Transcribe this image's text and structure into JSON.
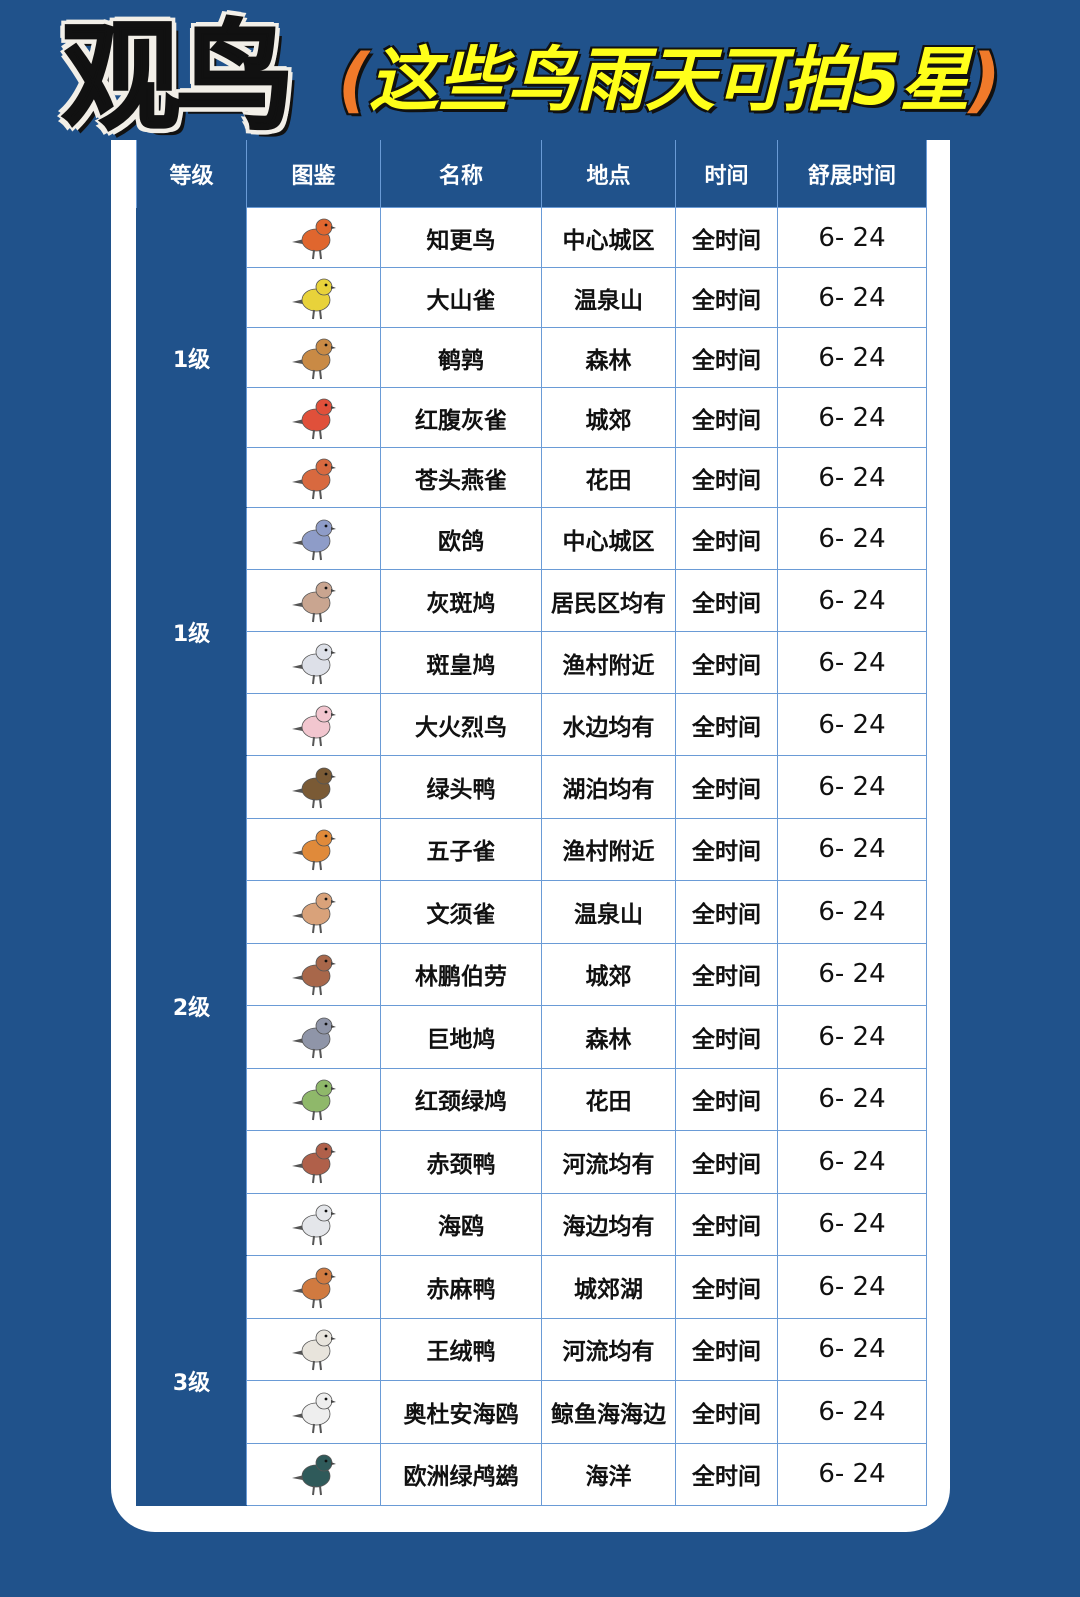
{
  "title": "观鸟",
  "subtitle": {
    "open": "(",
    "text": "这些鸟雨天可拍5星",
    "close": ")"
  },
  "colors": {
    "background": "#20528b",
    "title_yellow": "#ffff1a",
    "paren_orange": "#f07a2a",
    "grid": "#6a9bd6"
  },
  "table": {
    "headers": [
      "等级",
      "图鉴",
      "名称",
      "地点",
      "时间",
      "舒展时间"
    ],
    "groups": [
      {
        "level": "1级",
        "rows": [
          {
            "name": "知更鸟",
            "location": "中心城区",
            "time": "全时间",
            "stretch": "6- 24",
            "icon": "robin-icon",
            "color": "#e0662e"
          },
          {
            "name": "大山雀",
            "location": "温泉山",
            "time": "全时间",
            "stretch": "6- 24",
            "icon": "great-tit-icon",
            "color": "#e8d23a"
          },
          {
            "name": "鹌鹑",
            "location": "森林",
            "time": "全时间",
            "stretch": "6- 24",
            "icon": "quail-icon",
            "color": "#c98a45"
          },
          {
            "name": "红腹灰雀",
            "location": "城郊",
            "time": "全时间",
            "stretch": "6- 24",
            "icon": "bullfinch-icon",
            "color": "#e0503a"
          },
          {
            "name": "苍头燕雀",
            "location": "花田",
            "time": "全时间",
            "stretch": "6- 24",
            "icon": "chaffinch-icon",
            "color": "#d8693f"
          }
        ]
      },
      {
        "level": "1级",
        "rows": [
          {
            "name": "欧鸽",
            "location": "中心城区",
            "time": "全时间",
            "stretch": "6- 24",
            "icon": "stock-dove-icon",
            "color": "#8e9cc8"
          },
          {
            "name": "灰斑鸠",
            "location": "居民区均有",
            "time": "全时间",
            "stretch": "6- 24",
            "icon": "collared-dove-icon",
            "color": "#c9a590"
          },
          {
            "name": "斑皇鸠",
            "location": "渔村附近",
            "time": "全时间",
            "stretch": "6- 24",
            "icon": "wood-pigeon-icon",
            "color": "#dde0e8"
          },
          {
            "name": "大火烈鸟",
            "location": "水边均有",
            "time": "全时间",
            "stretch": "6- 24",
            "icon": "flamingo-icon",
            "color": "#f2c6cf"
          }
        ]
      },
      {
        "level": "2级",
        "rows": [
          {
            "name": "绿头鸭",
            "location": "湖泊均有",
            "time": "全时间",
            "stretch": "6- 24",
            "icon": "mallard-icon",
            "color": "#7a5a35"
          },
          {
            "name": "五子雀",
            "location": "渔村附近",
            "time": "全时间",
            "stretch": "6- 24",
            "icon": "nuthatch-icon",
            "color": "#e08a3a"
          },
          {
            "name": "文须雀",
            "location": "温泉山",
            "time": "全时间",
            "stretch": "6- 24",
            "icon": "bearded-reedling-icon",
            "color": "#d9a27a"
          },
          {
            "name": "林鹏伯劳",
            "location": "城郊",
            "time": "全时间",
            "stretch": "6- 24",
            "icon": "shrike-icon",
            "color": "#a8674a"
          },
          {
            "name": "巨地鸠",
            "location": "森林",
            "time": "全时间",
            "stretch": "6- 24",
            "icon": "ground-dove-icon",
            "color": "#8f95a8"
          },
          {
            "name": "红颈绿鸠",
            "location": "花田",
            "time": "全时间",
            "stretch": "6- 24",
            "icon": "green-pigeon-icon",
            "color": "#8fb86a"
          },
          {
            "name": "赤颈鸭",
            "location": "河流均有",
            "time": "全时间",
            "stretch": "6- 24",
            "icon": "wigeon-icon",
            "color": "#b0604a"
          },
          {
            "name": "海鸥",
            "location": "海边均有",
            "time": "全时间",
            "stretch": "6- 24",
            "icon": "gull-icon",
            "color": "#e4e6ea"
          }
        ]
      },
      {
        "level": "3级",
        "rows": [
          {
            "name": "赤麻鸭",
            "location": "城郊湖",
            "time": "全时间",
            "stretch": "6- 24",
            "icon": "ruddy-shelduck-icon",
            "color": "#d07a40"
          },
          {
            "name": "王绒鸭",
            "location": "河流均有",
            "time": "全时间",
            "stretch": "6- 24",
            "icon": "king-eider-icon",
            "color": "#e8e4dc"
          },
          {
            "name": "奥杜安海鸥",
            "location": "鲸鱼海海边",
            "time": "全时间",
            "stretch": "6- 24",
            "icon": "audouins-gull-icon",
            "color": "#eeeeee"
          },
          {
            "name": "欧洲绿鸬鹚",
            "location": "海洋",
            "time": "全时间",
            "stretch": "6- 24",
            "icon": "shag-icon",
            "color": "#2f5a5a"
          }
        ]
      }
    ]
  }
}
